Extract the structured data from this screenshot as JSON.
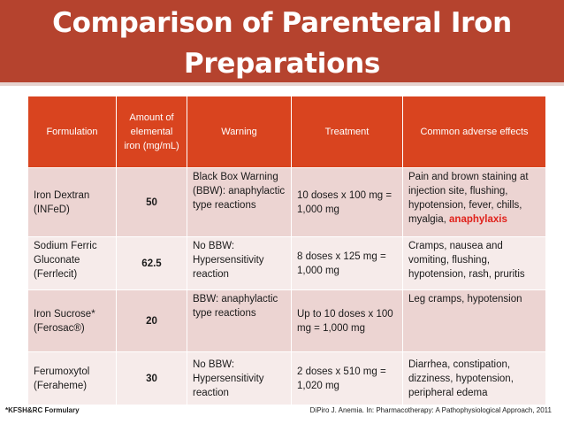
{
  "title": {
    "line1": "Comparison of Parenteral Iron",
    "line2": "Preparations"
  },
  "table": {
    "headers": {
      "formulation": "Formulation",
      "amount": "Amount of elemental iron (mg/mL)",
      "warning": "Warning",
      "treatment": "Treatment",
      "adverse": "Common adverse effects"
    },
    "rows": [
      {
        "formulation": "Iron Dextran (INFeD)",
        "amount": "50",
        "warning": "Black Box Warning (BBW): anaphylactic type reactions",
        "treatment": "10 doses x 100 mg = 1,000 mg",
        "adverse": "Pain and brown staining at injection site, flushing, hypotension, fever, chills, myalgia, ",
        "adverse_highlight": "anaphylaxis"
      },
      {
        "formulation": "Sodium Ferric Gluconate (Ferrlecit)",
        "amount": "62.5",
        "warning": "No BBW: Hypersensitivity reaction",
        "treatment": "8 doses x 125 mg = 1,000 mg",
        "adverse": "Cramps, nausea and vomiting, flushing, hypotension, rash, pruritis"
      },
      {
        "formulation": "Iron Sucrose* (Ferosac®)",
        "amount": "20",
        "warning": "BBW: anaphylactic type reactions",
        "treatment": "Up to 10 doses x 100 mg = 1,000 mg",
        "adverse": "Leg cramps, hypotension"
      },
      {
        "formulation": "Ferumoxytol (Feraheme)",
        "amount": "30",
        "warning": "No BBW: Hypersensitivity reaction",
        "treatment": "2 doses x 510 mg = 1,020 mg",
        "adverse": "Diarrhea, constipation, dizziness, hypotension, peripheral edema"
      }
    ]
  },
  "footer": {
    "left": "*KFSH&RC Formulary",
    "right": "DiPiro J. Anemia. In: Pharmacotherapy: A Pathophysiological Approach, 2011"
  },
  "colors": {
    "title_bg": "#b5432e",
    "header_bg": "#d9441f",
    "row_odd": "#ecd4d2",
    "row_even": "#f6ebea",
    "highlight": "#e0211b"
  }
}
